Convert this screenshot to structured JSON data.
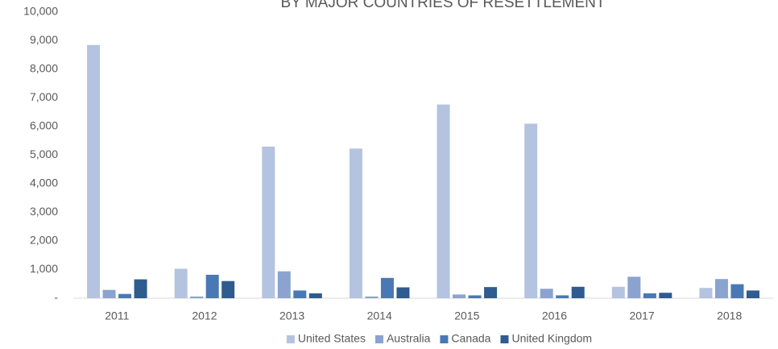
{
  "chart_data": {
    "type": "bar",
    "title": "BY MAJOR COUNTRIES OF RESETTLEMENT",
    "categories": [
      "2011",
      "2012",
      "2013",
      "2014",
      "2015",
      "2016",
      "2017",
      "2018"
    ],
    "series": [
      {
        "name": "United States",
        "color": "#b4c3df",
        "values": [
          8850,
          1030,
          5300,
          5230,
          6770,
          6100,
          400,
          360
        ]
      },
      {
        "name": "Australia",
        "color": "#8ba3cf",
        "values": [
          290,
          60,
          940,
          60,
          130,
          330,
          750,
          670
        ]
      },
      {
        "name": "Canada",
        "color": "#4a78b5",
        "values": [
          150,
          820,
          270,
          710,
          100,
          100,
          170,
          490
        ]
      },
      {
        "name": "United Kingdom",
        "color": "#2f5b8f",
        "values": [
          660,
          600,
          170,
          380,
          390,
          400,
          190,
          270
        ]
      }
    ],
    "ylim": [
      0,
      10000
    ],
    "yticks": [
      {
        "value": 0,
        "label": "-"
      },
      {
        "value": 1000,
        "label": "1,000"
      },
      {
        "value": 2000,
        "label": "2,000"
      },
      {
        "value": 3000,
        "label": "3,000"
      },
      {
        "value": 4000,
        "label": "4,000"
      },
      {
        "value": 5000,
        "label": "5,000"
      },
      {
        "value": 6000,
        "label": "6,000"
      },
      {
        "value": 7000,
        "label": "7,000"
      },
      {
        "value": 8000,
        "label": "8,000"
      },
      {
        "value": 9000,
        "label": "9,000"
      },
      {
        "value": 10000,
        "label": "10,000"
      }
    ],
    "grid": false,
    "legend": "bottom"
  }
}
